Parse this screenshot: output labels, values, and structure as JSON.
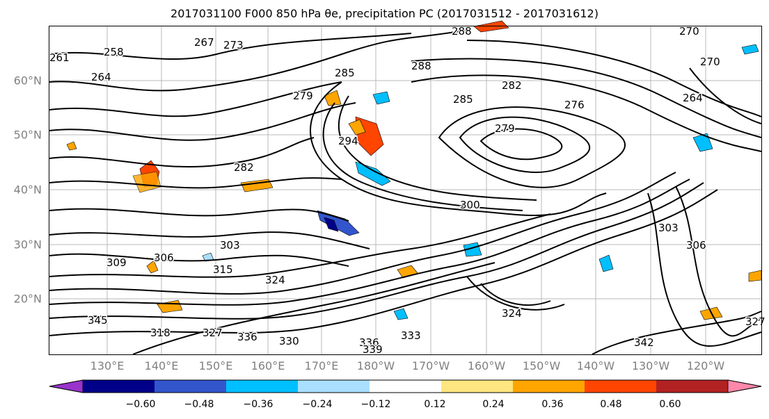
{
  "title": "2017031100 F000 850 hPa θe, precipitation PC (2017031512 - 2017031612)",
  "map": {
    "lat_labels": [
      "60°N",
      "50°N",
      "40°N",
      "30°N",
      "20°N"
    ],
    "lon_labels": [
      "130°E",
      "140°E",
      "150°E",
      "160°E",
      "170°E",
      "180°W",
      "170°W",
      "160°W",
      "150°W",
      "140°W",
      "130°W",
      "120°W"
    ],
    "contour_labels": [
      "261",
      "258",
      "267",
      "273",
      "270",
      "270",
      "288",
      "264",
      "264",
      "276",
      "279",
      "285",
      "285",
      "282",
      "288",
      "279",
      "294",
      "282",
      "300",
      "303",
      "306",
      "309",
      "306",
      "303",
      "315",
      "324",
      "345",
      "318",
      "327",
      "336",
      "330",
      "336",
      "339",
      "333",
      "342",
      "324",
      "327"
    ]
  },
  "colorbar": {
    "colors": [
      "#9933cc",
      "#000088",
      "#3355cc",
      "#00bfff",
      "#aadfff",
      "#ffffff",
      "#ffe680",
      "#ffa500",
      "#ff4500",
      "#b22222",
      "#ff88aa"
    ],
    "ticks": [
      "−0.60",
      "−0.48",
      "−0.36",
      "−0.24",
      "−0.12",
      "0.12",
      "0.24",
      "0.36",
      "0.48",
      "0.60"
    ]
  }
}
